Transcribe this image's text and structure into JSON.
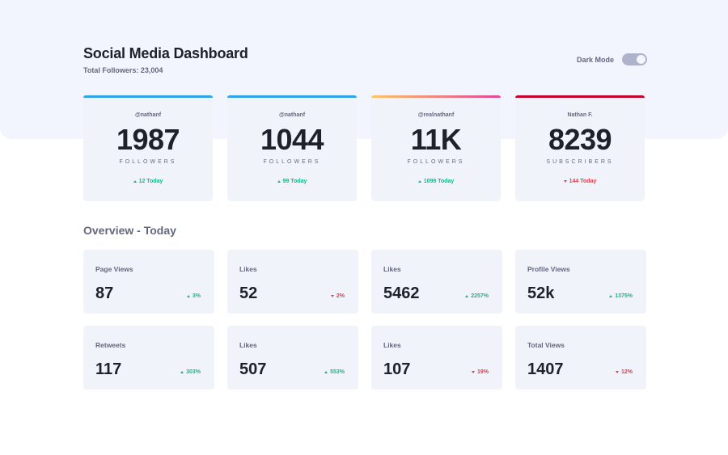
{
  "header": {
    "title": "Social Media Dashboard",
    "total_followers": "Total Followers: 23,004"
  },
  "dark_mode": {
    "label": "Dark Mode",
    "enabled": false
  },
  "follower_cards": [
    {
      "handle": "@nathanf",
      "count": "1987",
      "unit": "FOLLOWERS",
      "delta": "12 Today",
      "trend": "up",
      "accent": "#2ea3e8",
      "icon": "facebook-icon"
    },
    {
      "handle": "@nathanf",
      "count": "1044",
      "unit": "FOLLOWERS",
      "delta": "99 Today",
      "trend": "up",
      "accent": "#2ea3e8",
      "icon": "twitter-icon"
    },
    {
      "handle": "@realnathanf",
      "count": "11K",
      "unit": "FOLLOWERS",
      "delta": "1099 Today",
      "trend": "up",
      "accent": "#e86a8d",
      "icon": "instagram-icon"
    },
    {
      "handle": "Nathan F.",
      "count": "8239",
      "unit": "SUBSCRIBERS",
      "delta": "144 Today",
      "trend": "down",
      "accent": "#c4032a",
      "icon": "youtube-icon"
    }
  ],
  "overview": {
    "title": "Overview - Today",
    "cards": [
      {
        "label": "Page Views",
        "value": "87",
        "pct": "3%",
        "trend": "up"
      },
      {
        "label": "Likes",
        "value": "52",
        "pct": "2%",
        "trend": "down"
      },
      {
        "label": "Likes",
        "value": "5462",
        "pct": "2257%",
        "trend": "up"
      },
      {
        "label": "Profile Views",
        "value": "52k",
        "pct": "1375%",
        "trend": "up"
      },
      {
        "label": "Retweets",
        "value": "117",
        "pct": "303%",
        "trend": "up"
      },
      {
        "label": "Likes",
        "value": "507",
        "pct": "553%",
        "trend": "up"
      },
      {
        "label": "Likes",
        "value": "107",
        "pct": "19%",
        "trend": "down"
      },
      {
        "label": "Total Views",
        "value": "1407",
        "pct": "12%",
        "trend": "down"
      }
    ]
  }
}
